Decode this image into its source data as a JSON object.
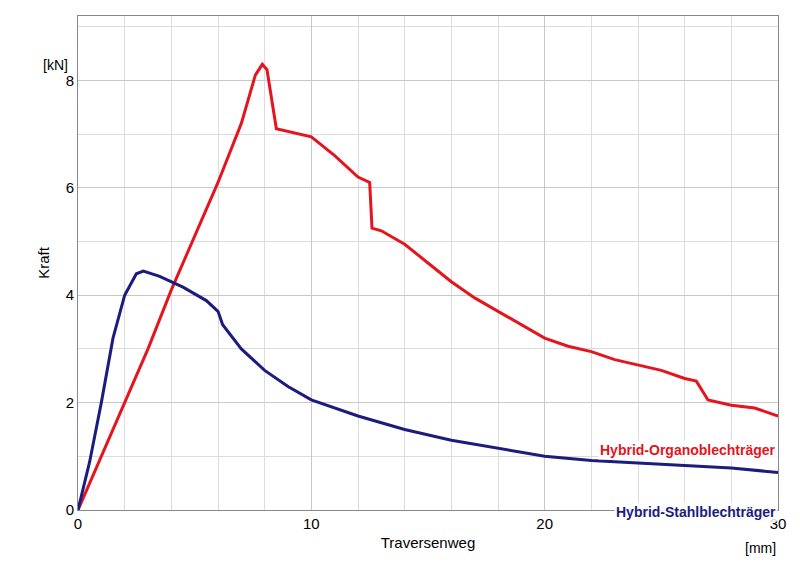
{
  "chart_data": {
    "type": "line",
    "x_label": "Traversenweg",
    "x_unit": "[mm]",
    "y_label": "Kraft",
    "y_unit": "[kN]",
    "xlim": [
      0,
      30
    ],
    "xticks": [
      0,
      10,
      20,
      30
    ],
    "ylim": [
      0,
      9.2
    ],
    "yticks": [
      0,
      2,
      4,
      6,
      8
    ],
    "grid": true,
    "series": [
      {
        "name": "Hybrid-Organoblechträger",
        "color": "#e3151e",
        "x": [
          0,
          1,
          2,
          3,
          4,
          5,
          6,
          7,
          7.6,
          7.9,
          8.1,
          8.5,
          9,
          10,
          11,
          12,
          12.5,
          12.6,
          13,
          14,
          15,
          16,
          17,
          18,
          19,
          20,
          21,
          22,
          23,
          24,
          25,
          26,
          26.5,
          27,
          28,
          29,
          30
        ],
        "values": [
          0,
          1.0,
          2.0,
          3.0,
          4.1,
          5.1,
          6.1,
          7.2,
          8.1,
          8.3,
          8.2,
          7.1,
          7.05,
          6.95,
          6.6,
          6.2,
          6.1,
          5.25,
          5.2,
          4.95,
          4.6,
          4.25,
          3.95,
          3.7,
          3.45,
          3.2,
          3.05,
          2.95,
          2.8,
          2.7,
          2.6,
          2.45,
          2.4,
          2.05,
          1.95,
          1.9,
          1.75
        ]
      },
      {
        "name": "Hybrid-Stahlblechträger",
        "color": "#1c1c7e",
        "x": [
          0,
          0.5,
          1,
          1.5,
          2,
          2.5,
          2.8,
          3.5,
          4.5,
          5.5,
          6,
          6.2,
          7,
          8,
          9,
          10,
          12,
          14,
          16,
          18,
          20,
          22,
          25,
          28,
          30
        ],
        "values": [
          0,
          0.9,
          2.0,
          3.2,
          4.0,
          4.4,
          4.45,
          4.35,
          4.15,
          3.9,
          3.7,
          3.45,
          3.0,
          2.6,
          2.3,
          2.05,
          1.75,
          1.5,
          1.3,
          1.15,
          1.0,
          0.92,
          0.85,
          0.78,
          0.7
        ]
      }
    ]
  }
}
